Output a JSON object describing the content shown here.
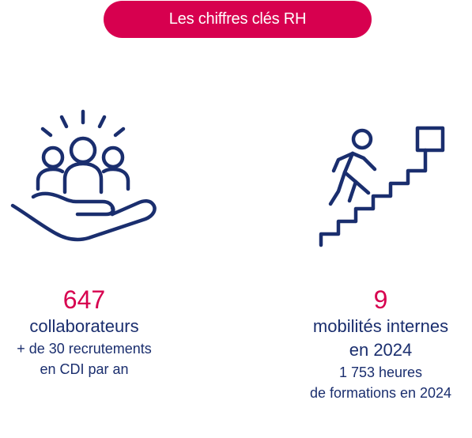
{
  "header": {
    "title": "Les chiffres clés RH"
  },
  "colors": {
    "accent": "#d7004f",
    "text": "#1a2e6e",
    "icon_stroke": "#1a2e6e"
  },
  "stats": [
    {
      "icon": "people-in-hand-icon",
      "number": "647",
      "label": "collaborateurs",
      "sub_lines": [
        "+ de 30 recrutements",
        "en CDI par an"
      ]
    },
    {
      "icon": "stairs-climber-icon",
      "number": "9",
      "label_lines": [
        "mobilités internes",
        "en 2024"
      ],
      "sub_lines": [
        "1 753 heures",
        "de formations en 2024"
      ]
    }
  ]
}
